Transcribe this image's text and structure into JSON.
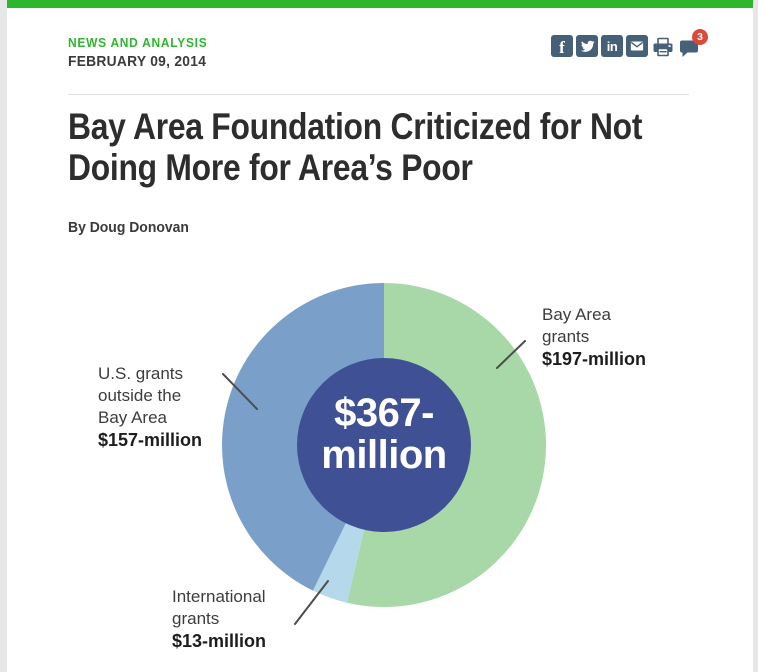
{
  "colors": {
    "brand_green": "#2cb72c",
    "icon_slate": "#466078",
    "badge_red": "#dd4838",
    "headline_text": "#2d2d2d"
  },
  "header": {
    "eyebrow": "NEWS AND ANALYSIS",
    "date": "FEBRUARY 09, 2014",
    "social": {
      "facebook": "facebook",
      "twitter": "twitter",
      "linkedin": "linkedin",
      "email": "email",
      "print": "print",
      "comments": "comments",
      "comment_badge": "3"
    }
  },
  "article": {
    "headline": "Bay Area Foundation Criticized for Not Doing More for Area's Poor",
    "headline_lines": [
      "Bay Area Foundation Criticized for Not",
      "Doing More for Area’s Poor"
    ],
    "byline": "By Doug Donovan"
  },
  "chart_data": {
    "type": "pie",
    "donut": true,
    "total_value": 367,
    "center_label_lines": [
      "$367-",
      "million"
    ],
    "center_color": "#3f5194",
    "legend_position": "callouts",
    "segments": [
      {
        "name": "Bay Area grants",
        "value": 197,
        "color": "#a8d8a8",
        "label_lines": [
          "Bay Area",
          "grants"
        ],
        "amount_label": "$197-million"
      },
      {
        "name": "International grants",
        "value": 13,
        "color": "#b5d9ea",
        "label_lines": [
          "International",
          "grants"
        ],
        "amount_label": "$13-million"
      },
      {
        "name": "U.S. grants outside the Bay Area",
        "value": 157,
        "color": "#7aa0ca",
        "label_lines": [
          "U.S. grants",
          "outside the",
          "Bay Area"
        ],
        "amount_label": "$157-million"
      }
    ]
  }
}
